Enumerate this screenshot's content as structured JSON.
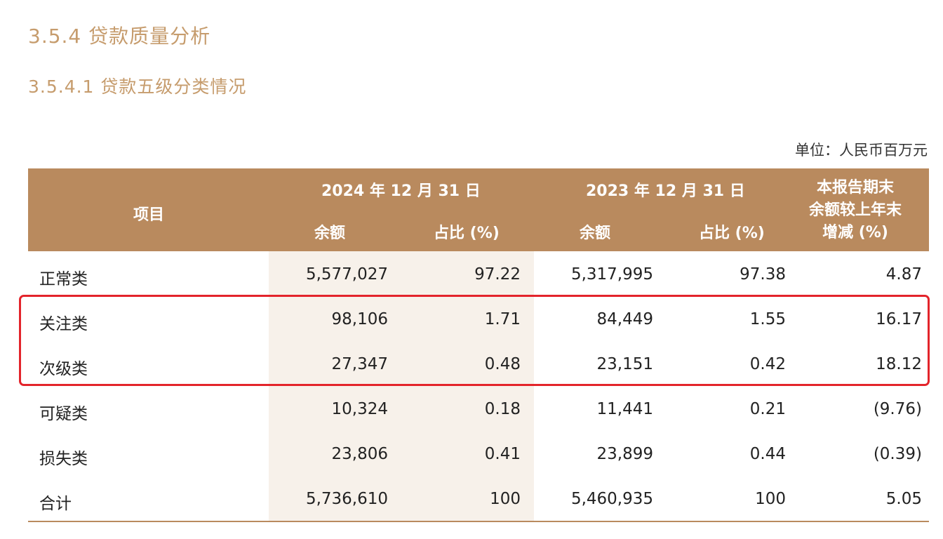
{
  "section": {
    "title": "3.5.4 贷款质量分析",
    "subtitle": "3.5.4.1 贷款五级分类情况"
  },
  "unit": "单位：人民币百万元",
  "table": {
    "header": {
      "item": "项目",
      "period_2024": "2024 年 12 月 31 日",
      "period_2023": "2023 年 12 月 31 日",
      "balance": "余额",
      "share": "占比 (%)",
      "change_line1": "本报告期末",
      "change_line2": "余额较上年末",
      "change_line3": "增减 (%)"
    },
    "rows": [
      {
        "name": "正常类",
        "b2024": "5,577,027",
        "p2024": "97.22",
        "b2023": "5,317,995",
        "p2023": "97.38",
        "change": "4.87"
      },
      {
        "name": "关注类",
        "b2024": "98,106",
        "p2024": "1.71",
        "b2023": "84,449",
        "p2023": "1.55",
        "change": "16.17"
      },
      {
        "name": "次级类",
        "b2024": "27,347",
        "p2024": "0.48",
        "b2023": "23,151",
        "p2023": "0.42",
        "change": "18.12"
      },
      {
        "name": "可疑类",
        "b2024": "10,324",
        "p2024": "0.18",
        "b2023": "11,441",
        "p2023": "0.21",
        "change": "(9.76)"
      },
      {
        "name": "损失类",
        "b2024": "23,806",
        "p2024": "0.41",
        "b2023": "23,899",
        "p2023": "0.44",
        "change": "(0.39)"
      },
      {
        "name": "合计",
        "b2024": "5,736,610",
        "p2024": "100",
        "b2023": "5,460,935",
        "p2023": "100",
        "change": "5.05"
      }
    ]
  },
  "colors": {
    "accent": "#c69c6d",
    "header_bg": "#b98a5e",
    "shade": "#f7f1ea",
    "highlight": "#e3242b"
  }
}
